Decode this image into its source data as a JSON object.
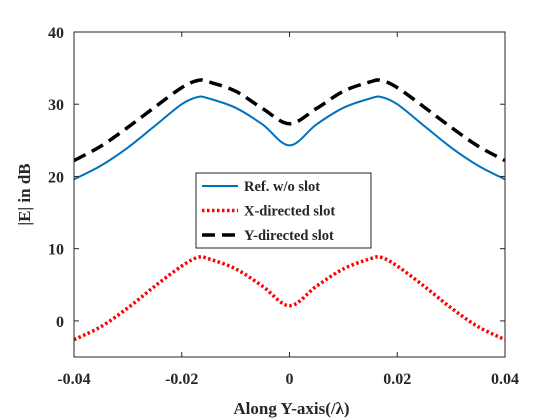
{
  "chart_data": {
    "type": "line",
    "xlabel": "Along Y-axis(/λ)",
    "ylabel": "|E| in dB",
    "xlim": [
      -0.04,
      0.04
    ],
    "ylim": [
      -5,
      40
    ],
    "xticks": [
      -0.04,
      -0.02,
      0,
      0.02,
      0.04
    ],
    "xtick_labels": [
      "-0.04",
      "-0.02",
      "0",
      "0.02",
      "0.04"
    ],
    "yticks": [
      0,
      10,
      20,
      30,
      40
    ],
    "ytick_labels": [
      "0",
      "10",
      "20",
      "30",
      "40"
    ],
    "grid": false,
    "legend_position": "center",
    "x": [
      -0.04,
      -0.035,
      -0.03,
      -0.025,
      -0.02,
      -0.017,
      -0.015,
      -0.01,
      -0.005,
      0,
      0.005,
      0.01,
      0.015,
      0.017,
      0.02,
      0.025,
      0.03,
      0.035,
      0.04
    ],
    "series": [
      {
        "name": "Ref. w/o slot",
        "color": "#0072BD",
        "style": "solid",
        "values": [
          19.6,
          21.5,
          24.0,
          27.0,
          30.0,
          31.0,
          30.8,
          29.5,
          27.2,
          24.3,
          27.2,
          29.5,
          30.8,
          31.0,
          30.0,
          27.0,
          24.0,
          21.5,
          19.6
        ]
      },
      {
        "name": "X-directed slot",
        "color": "#ff0000",
        "style": "dotted",
        "values": [
          -2.6,
          -0.8,
          1.8,
          4.8,
          7.6,
          8.8,
          8.6,
          7.2,
          4.8,
          2.1,
          4.8,
          7.2,
          8.6,
          8.8,
          7.6,
          4.8,
          1.8,
          -0.8,
          -2.6
        ]
      },
      {
        "name": "Y-directed slot",
        "color": "#000000",
        "style": "dashed",
        "values": [
          22.2,
          24.2,
          26.8,
          29.6,
          32.3,
          33.3,
          33.1,
          31.8,
          29.4,
          27.3,
          29.4,
          31.8,
          33.1,
          33.3,
          32.3,
          29.6,
          26.8,
          24.2,
          22.2
        ]
      }
    ]
  }
}
